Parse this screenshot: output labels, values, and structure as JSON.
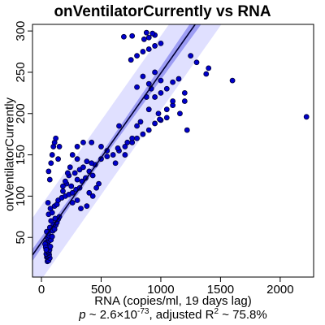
{
  "chart_data": {
    "type": "scatter",
    "title": "onVentilatorCurrently vs RNA",
    "xlabel": "RNA (copies/ml, 19 days lag)",
    "ylabel": "onVentilatorCurrently",
    "subtitle": {
      "p_prefix": "p",
      "p_value_text": " ~ 2.6×10",
      "p_exponent": "-73",
      "r2_prefix": ", adjusted R",
      "r2_power": "2",
      "r2_value_text": " ~ 75.8%"
    },
    "xlim": [
      -75,
      2280
    ],
    "ylim": [
      2,
      308
    ],
    "xticks": [
      0,
      500,
      1000,
      1500,
      2000
    ],
    "yticks": [
      50,
      100,
      150,
      200,
      250,
      300
    ],
    "grid": false,
    "fit": {
      "intercept": 44,
      "slope": 0.205
    },
    "confidence_band_halfwidth": 4,
    "prediction_band_halfwidth": 45,
    "colors": {
      "point_fill": "#0000cc",
      "point_edge": "#000033",
      "fit_line": "#000033",
      "confidence_band": "#8080f0",
      "prediction_band": "#e0e0ff"
    },
    "points": [
      [
        50,
        21
      ],
      [
        55,
        24
      ],
      [
        60,
        22
      ],
      [
        45,
        26
      ],
      [
        70,
        25
      ],
      [
        48,
        27
      ],
      [
        52,
        28
      ],
      [
        65,
        29
      ],
      [
        40,
        30
      ],
      [
        58,
        31
      ],
      [
        62,
        32
      ],
      [
        55,
        33
      ],
      [
        47,
        34
      ],
      [
        68,
        35
      ],
      [
        42,
        36
      ],
      [
        53,
        37
      ],
      [
        60,
        38
      ],
      [
        50,
        40
      ],
      [
        75,
        39
      ],
      [
        45,
        42
      ],
      [
        38,
        44
      ],
      [
        58,
        45
      ],
      [
        66,
        46
      ],
      [
        72,
        48
      ],
      [
        80,
        47
      ],
      [
        50,
        50
      ],
      [
        62,
        52
      ],
      [
        90,
        51
      ],
      [
        56,
        55
      ],
      [
        44,
        57
      ],
      [
        95,
        58
      ],
      [
        110,
        60
      ],
      [
        70,
        62
      ],
      [
        120,
        65
      ],
      [
        100,
        66
      ],
      [
        80,
        70
      ],
      [
        130,
        68
      ],
      [
        140,
        72
      ],
      [
        115,
        73
      ],
      [
        150,
        75
      ],
      [
        60,
        78
      ],
      [
        90,
        80
      ],
      [
        75,
        85
      ],
      [
        110,
        88
      ],
      [
        130,
        90
      ],
      [
        55,
        92
      ],
      [
        140,
        95
      ],
      [
        170,
        98
      ],
      [
        200,
        100
      ],
      [
        230,
        102
      ],
      [
        260,
        104
      ],
      [
        180,
        106
      ],
      [
        290,
        108
      ],
      [
        320,
        110
      ],
      [
        250,
        112
      ],
      [
        210,
        115
      ],
      [
        340,
        118
      ],
      [
        300,
        120
      ],
      [
        370,
        122
      ],
      [
        230,
        125
      ],
      [
        280,
        128
      ],
      [
        400,
        130
      ],
      [
        320,
        132
      ],
      [
        350,
        135
      ],
      [
        450,
        138
      ],
      [
        420,
        140
      ],
      [
        380,
        142
      ],
      [
        500,
        145
      ],
      [
        550,
        148
      ],
      [
        600,
        150
      ],
      [
        650,
        155
      ],
      [
        640,
        158
      ],
      [
        700,
        160
      ],
      [
        760,
        165
      ],
      [
        800,
        170
      ],
      [
        850,
        175
      ],
      [
        900,
        180
      ],
      [
        650,
        185
      ],
      [
        950,
        188
      ],
      [
        1000,
        192
      ],
      [
        1050,
        195
      ],
      [
        980,
        200
      ],
      [
        900,
        205
      ],
      [
        1100,
        210
      ],
      [
        1200,
        215
      ],
      [
        950,
        220
      ],
      [
        1000,
        225
      ],
      [
        1050,
        230
      ],
      [
        800,
        232
      ],
      [
        900,
        236
      ],
      [
        1000,
        240
      ],
      [
        850,
        245
      ],
      [
        950,
        250
      ],
      [
        1400,
        255
      ],
      [
        1380,
        248
      ],
      [
        1600,
        240
      ],
      [
        1220,
        180
      ],
      [
        2220,
        196
      ],
      [
        1100,
        238
      ],
      [
        1150,
        242
      ],
      [
        750,
        265
      ],
      [
        800,
        270
      ],
      [
        850,
        275
      ],
      [
        900,
        278
      ],
      [
        950,
        282
      ],
      [
        1000,
        285
      ],
      [
        860,
        290
      ],
      [
        900,
        292
      ],
      [
        950,
        295
      ],
      [
        690,
        293
      ],
      [
        760,
        294
      ],
      [
        880,
        298
      ],
      [
        930,
        297
      ],
      [
        1250,
        270
      ],
      [
        1300,
        262
      ],
      [
        1160,
        200
      ],
      [
        1050,
        205
      ],
      [
        1100,
        215
      ],
      [
        1200,
        225
      ],
      [
        990,
        193
      ],
      [
        70,
        120
      ],
      [
        60,
        130
      ],
      [
        80,
        140
      ],
      [
        90,
        150
      ],
      [
        100,
        160
      ],
      [
        110,
        165
      ],
      [
        120,
        170
      ],
      [
        300,
        160
      ],
      [
        350,
        165
      ],
      [
        420,
        165
      ],
      [
        500,
        160
      ],
      [
        550,
        155
      ],
      [
        620,
        140
      ],
      [
        700,
        150
      ],
      [
        720,
        165
      ],
      [
        760,
        170
      ],
      [
        800,
        185
      ],
      [
        830,
        190
      ],
      [
        880,
        220
      ],
      [
        920,
        230
      ],
      [
        300,
        145
      ],
      [
        260,
        150
      ],
      [
        240,
        135
      ],
      [
        220,
        128
      ],
      [
        200,
        118
      ],
      [
        180,
        112
      ],
      [
        260,
        92
      ],
      [
        300,
        95
      ],
      [
        330,
        85
      ],
      [
        380,
        88
      ],
      [
        430,
        100
      ],
      [
        400,
        104
      ],
      [
        460,
        110
      ],
      [
        480,
        115
      ],
      [
        430,
        125
      ],
      [
        140,
        145
      ],
      [
        150,
        160
      ],
      [
        30,
        42
      ],
      [
        35,
        38
      ],
      [
        40,
        35
      ]
    ]
  }
}
